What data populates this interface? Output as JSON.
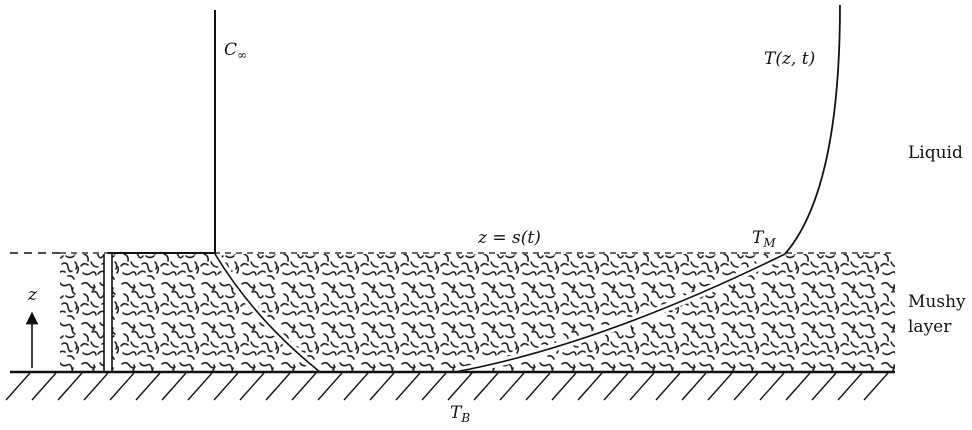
{
  "labels": {
    "c_infinity": {
      "symbol": "C",
      "subscript": "∞"
    },
    "temperature": "T(z, t)",
    "liquid": "Liquid",
    "interface": "z = s(t)",
    "t_m": {
      "symbol": "T",
      "subscript": "M"
    },
    "mushy_layer": [
      "Mushy",
      "layer"
    ],
    "z_axis": "z",
    "t_b": {
      "symbol": "T",
      "subscript": "B"
    }
  }
}
